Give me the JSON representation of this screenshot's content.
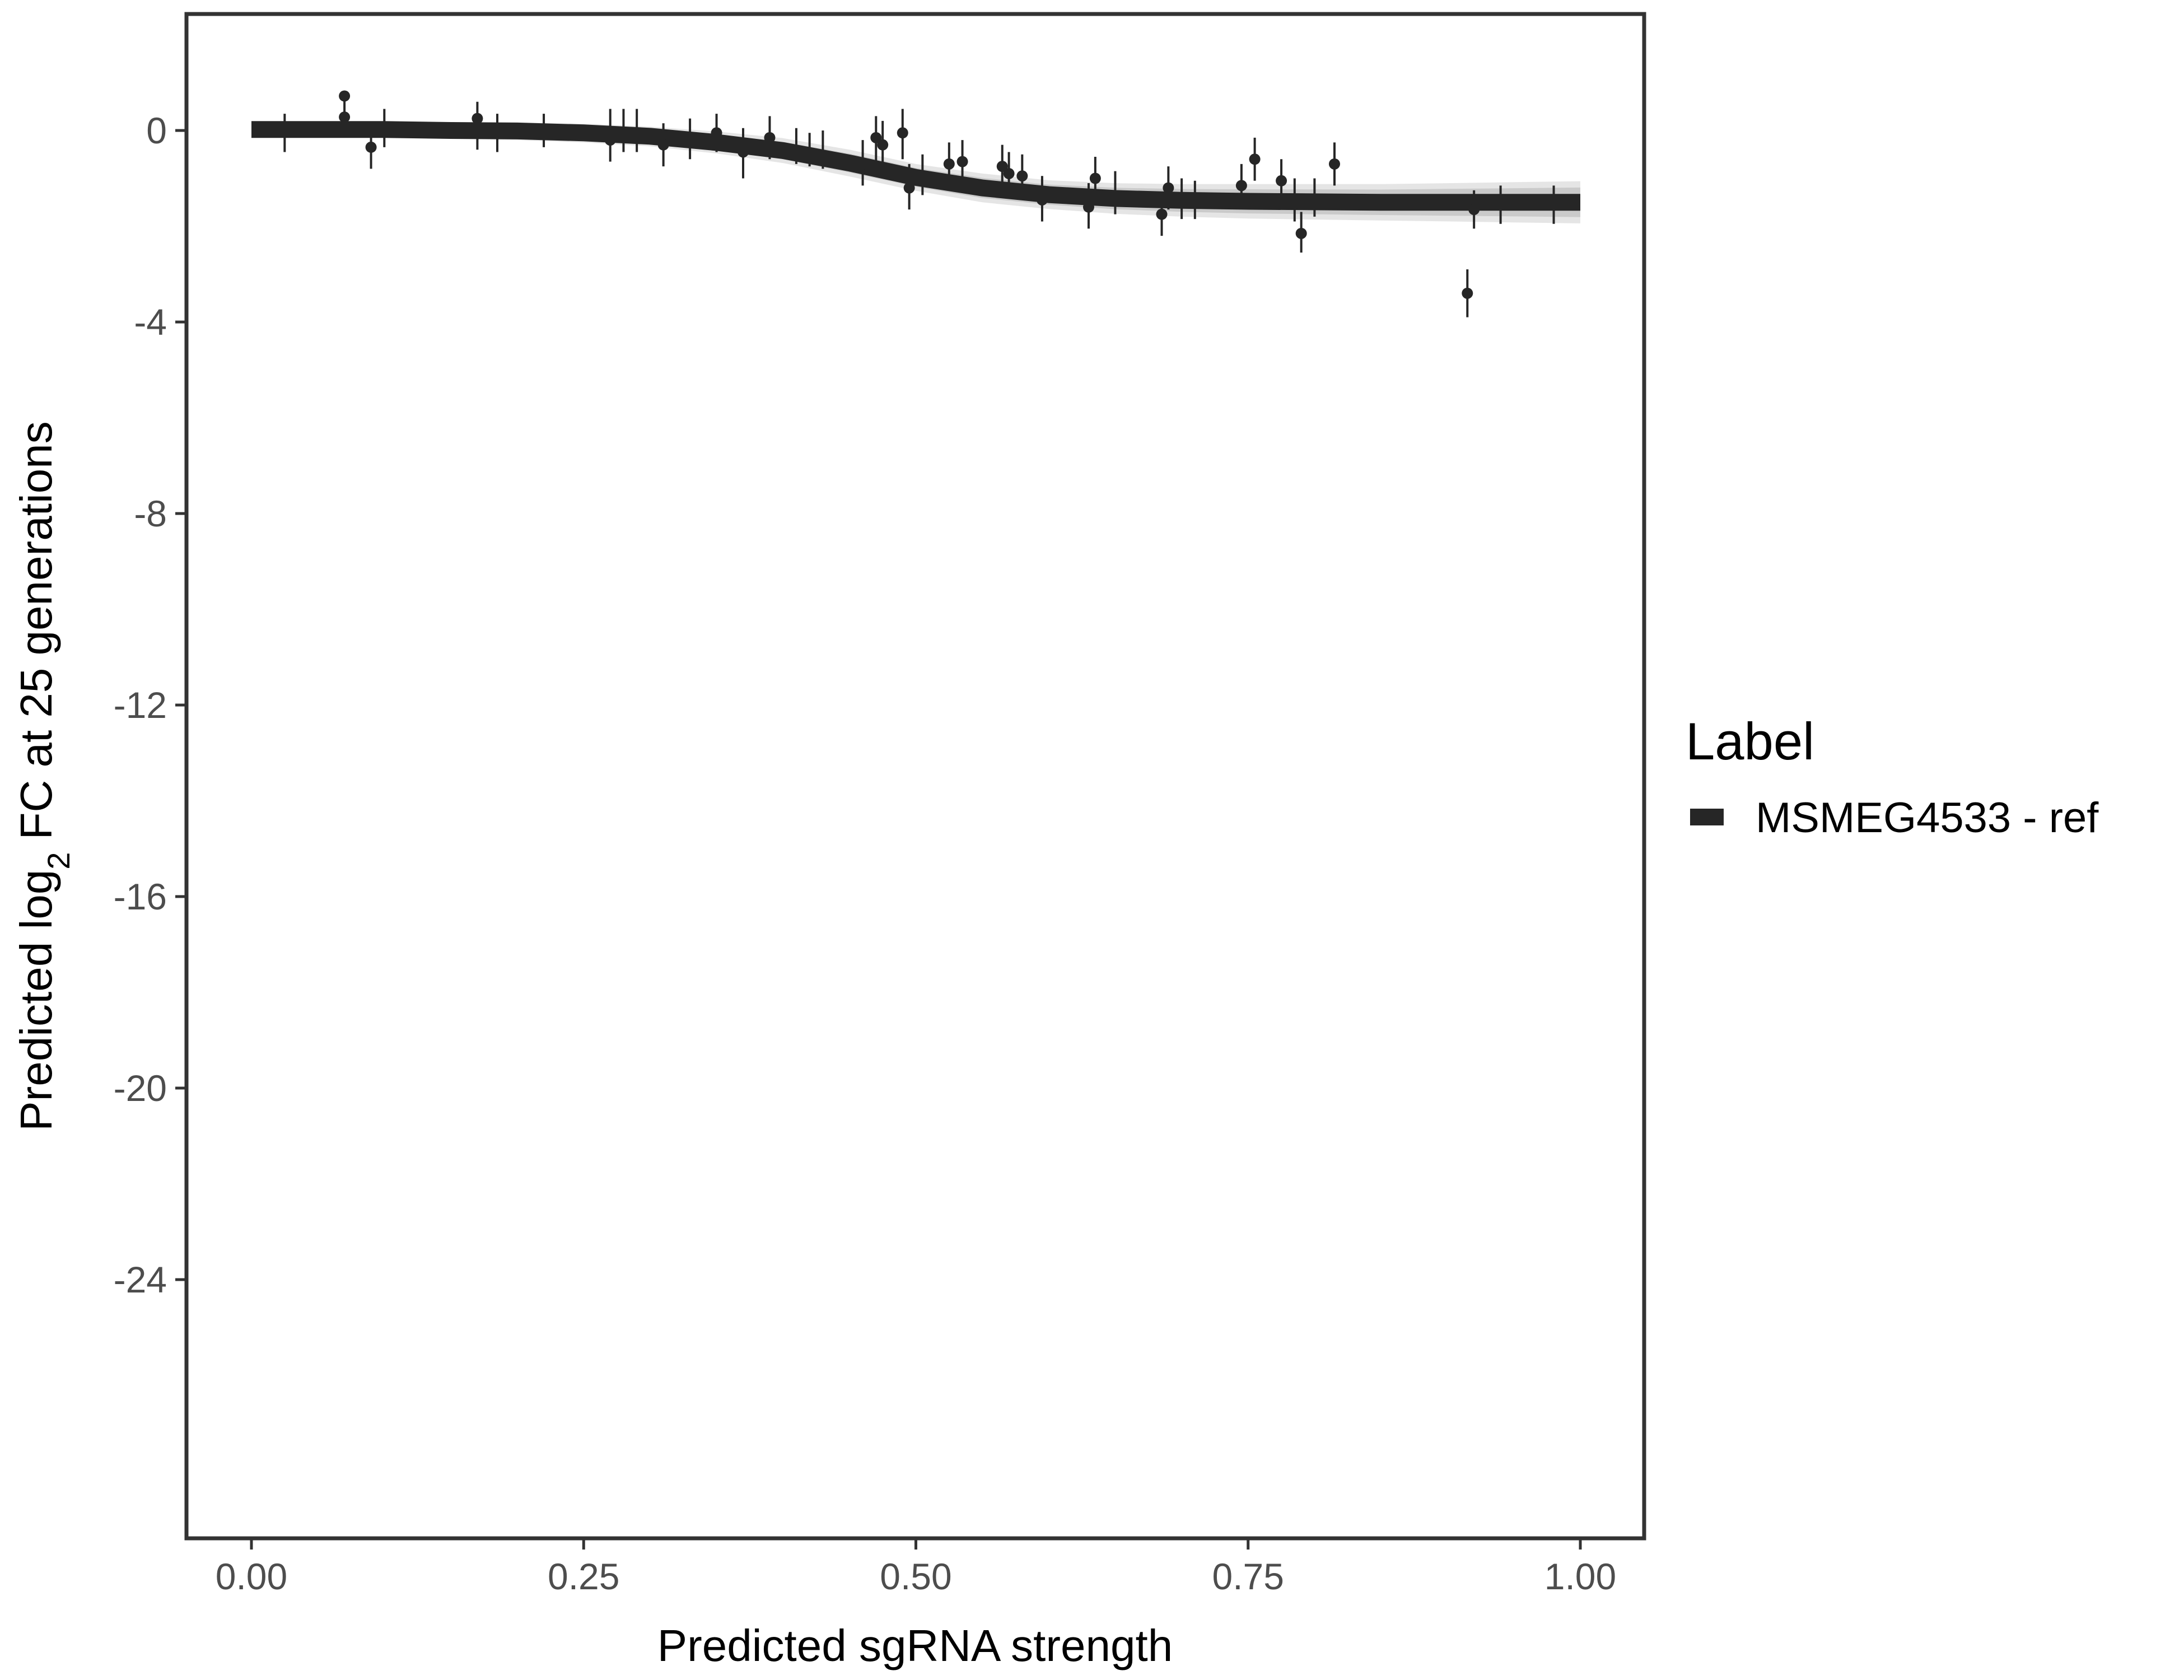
{
  "chart_data": {
    "type": "line",
    "xlabel": "Predicted sgRNA strength",
    "ylabel_prefix": "Predicted  log",
    "ylabel_subscript": "2",
    "ylabel_suffix": " FC at 25 generations",
    "xlim": [
      -0.1,
      2.2
    ],
    "ylim": [
      -29.5,
      2.4
    ],
    "x_ticks": [
      0,
      0.25,
      0.5,
      0.75,
      1.0
    ],
    "x_tick_labels": [
      "0.00",
      "0.25",
      "0.50",
      "0.75",
      "1.00"
    ],
    "y_ticks": [
      0,
      -4,
      -8,
      -12,
      -16,
      -20,
      -24
    ],
    "y_tick_labels": [
      "0",
      "-4",
      "-8",
      "-12",
      "-16",
      "-20",
      "-24"
    ],
    "grid": false,
    "legend": {
      "title": "Label",
      "placement": "right",
      "entries": [
        "MSMEG4533 - ref"
      ]
    },
    "colors": {
      "series": "#262626",
      "ribbon": "#999999",
      "axis": "#333333",
      "tick_text": "#4d4d4d"
    },
    "series": [
      {
        "name": "MSMEG4533 - ref",
        "fit": {
          "x": [
            0,
            0.05,
            0.1,
            0.15,
            0.2,
            0.25,
            0.3,
            0.35,
            0.4,
            0.45,
            0.5,
            0.55,
            0.6,
            0.65,
            0.7,
            0.75,
            0.8,
            0.85,
            0.9,
            0.95,
            1.0
          ],
          "y": [
            0.02,
            0.02,
            0.02,
            0.0,
            -0.01,
            -0.05,
            -0.12,
            -0.25,
            -0.42,
            -0.68,
            -0.98,
            -1.2,
            -1.34,
            -1.42,
            -1.46,
            -1.48,
            -1.49,
            -1.5,
            -1.5,
            -1.5,
            -1.5
          ],
          "lower": [
            -0.15,
            -0.15,
            -0.15,
            -0.17,
            -0.2,
            -0.25,
            -0.33,
            -0.48,
            -0.68,
            -0.96,
            -1.26,
            -1.5,
            -1.64,
            -1.74,
            -1.8,
            -1.84,
            -1.86,
            -1.88,
            -1.9,
            -1.92,
            -1.94
          ],
          "upper": [
            0.18,
            0.18,
            0.18,
            0.17,
            0.17,
            0.14,
            0.08,
            -0.02,
            -0.16,
            -0.4,
            -0.7,
            -0.9,
            -1.04,
            -1.1,
            -1.12,
            -1.12,
            -1.12,
            -1.12,
            -1.1,
            -1.08,
            -1.06
          ]
        },
        "points": [
          {
            "x": 0.07,
            "y": 0.72
          },
          {
            "x": 0.07,
            "y": 0.28
          },
          {
            "x": 0.09,
            "y": -0.35
          },
          {
            "x": 0.17,
            "y": 0.25
          },
          {
            "x": 0.27,
            "y": -0.2
          },
          {
            "x": 0.31,
            "y": -0.3
          },
          {
            "x": 0.35,
            "y": -0.05
          },
          {
            "x": 0.37,
            "y": -0.45
          },
          {
            "x": 0.39,
            "y": -0.15
          },
          {
            "x": 0.46,
            "y": -0.7
          },
          {
            "x": 0.47,
            "y": -0.15
          },
          {
            "x": 0.475,
            "y": -0.3
          },
          {
            "x": 0.49,
            "y": -0.05
          },
          {
            "x": 0.495,
            "y": -1.2
          },
          {
            "x": 0.525,
            "y": -0.7
          },
          {
            "x": 0.535,
            "y": -0.65
          },
          {
            "x": 0.565,
            "y": -0.75
          },
          {
            "x": 0.57,
            "y": -0.9
          },
          {
            "x": 0.58,
            "y": -0.95
          },
          {
            "x": 0.595,
            "y": -1.45
          },
          {
            "x": 0.63,
            "y": -1.6
          },
          {
            "x": 0.635,
            "y": -1.0
          },
          {
            "x": 0.685,
            "y": -1.75
          },
          {
            "x": 0.69,
            "y": -1.2
          },
          {
            "x": 0.745,
            "y": -1.15
          },
          {
            "x": 0.755,
            "y": -0.6
          },
          {
            "x": 0.775,
            "y": -1.05
          },
          {
            "x": 0.79,
            "y": -2.15
          },
          {
            "x": 0.815,
            "y": -0.7
          },
          {
            "x": 0.915,
            "y": -3.4
          },
          {
            "x": 0.92,
            "y": -1.65
          }
        ],
        "error_bars": [
          {
            "x": 0.025,
            "low": -0.45,
            "high": 0.35
          },
          {
            "x": 0.07,
            "low": -0.1,
            "high": 0.75
          },
          {
            "x": 0.09,
            "low": -0.8,
            "high": 0.15
          },
          {
            "x": 0.1,
            "low": -0.35,
            "high": 0.45
          },
          {
            "x": 0.17,
            "low": -0.4,
            "high": 0.6
          },
          {
            "x": 0.185,
            "low": -0.45,
            "high": 0.35
          },
          {
            "x": 0.22,
            "low": -0.35,
            "high": 0.35
          },
          {
            "x": 0.27,
            "low": -0.65,
            "high": 0.45
          },
          {
            "x": 0.28,
            "low": -0.45,
            "high": 0.45
          },
          {
            "x": 0.29,
            "low": -0.45,
            "high": 0.45
          },
          {
            "x": 0.31,
            "low": -0.75,
            "high": 0.15
          },
          {
            "x": 0.33,
            "low": -0.6,
            "high": 0.25
          },
          {
            "x": 0.35,
            "low": -0.45,
            "high": 0.35
          },
          {
            "x": 0.37,
            "low": -1.0,
            "high": 0.05
          },
          {
            "x": 0.39,
            "low": -0.6,
            "high": 0.3
          },
          {
            "x": 0.41,
            "low": -0.7,
            "high": 0.05
          },
          {
            "x": 0.42,
            "low": -0.75,
            "high": -0.05
          },
          {
            "x": 0.43,
            "low": -0.8,
            "high": 0.0
          },
          {
            "x": 0.46,
            "low": -1.15,
            "high": -0.2
          },
          {
            "x": 0.47,
            "low": -0.65,
            "high": 0.3
          },
          {
            "x": 0.475,
            "low": -0.8,
            "high": 0.2
          },
          {
            "x": 0.49,
            "low": -0.6,
            "high": 0.45
          },
          {
            "x": 0.495,
            "low": -1.65,
            "high": -0.7
          },
          {
            "x": 0.505,
            "low": -1.35,
            "high": -0.5
          },
          {
            "x": 0.525,
            "low": -1.15,
            "high": -0.25
          },
          {
            "x": 0.535,
            "low": -1.1,
            "high": -0.2
          },
          {
            "x": 0.565,
            "low": -1.15,
            "high": -0.3
          },
          {
            "x": 0.57,
            "low": -1.35,
            "high": -0.45
          },
          {
            "x": 0.58,
            "low": -1.4,
            "high": -0.5
          },
          {
            "x": 0.595,
            "low": -1.9,
            "high": -0.95
          },
          {
            "x": 0.63,
            "low": -2.05,
            "high": -1.1
          },
          {
            "x": 0.635,
            "low": -1.45,
            "high": -0.55
          },
          {
            "x": 0.65,
            "low": -1.75,
            "high": -0.85
          },
          {
            "x": 0.685,
            "low": -2.2,
            "high": -1.3
          },
          {
            "x": 0.69,
            "low": -1.65,
            "high": -0.75
          },
          {
            "x": 0.7,
            "low": -1.85,
            "high": -1.0
          },
          {
            "x": 0.71,
            "low": -1.85,
            "high": -1.05
          },
          {
            "x": 0.745,
            "low": -1.55,
            "high": -0.7
          },
          {
            "x": 0.755,
            "low": -1.05,
            "high": -0.15
          },
          {
            "x": 0.775,
            "low": -1.5,
            "high": -0.6
          },
          {
            "x": 0.785,
            "low": -1.9,
            "high": -1.0
          },
          {
            "x": 0.79,
            "low": -2.55,
            "high": -1.7
          },
          {
            "x": 0.8,
            "low": -1.8,
            "high": -1.0
          },
          {
            "x": 0.815,
            "low": -1.15,
            "high": -0.25
          },
          {
            "x": 0.915,
            "low": -3.9,
            "high": -2.9
          },
          {
            "x": 0.92,
            "low": -2.05,
            "high": -1.25
          },
          {
            "x": 0.94,
            "low": -1.95,
            "high": -1.15
          },
          {
            "x": 0.98,
            "low": -1.95,
            "high": -1.15
          }
        ]
      }
    ]
  }
}
